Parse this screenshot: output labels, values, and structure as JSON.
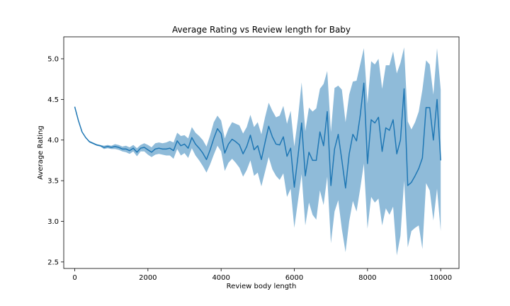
{
  "chart_data": {
    "type": "line",
    "title": "Average Rating vs Review length for Baby",
    "xlabel": "Review body length",
    "ylabel": "Average Rating",
    "xlim": [
      -300,
      10500
    ],
    "ylim": [
      2.42,
      5.27
    ],
    "xticks": [
      0,
      2000,
      4000,
      6000,
      8000,
      10000
    ],
    "xtick_labels": [
      "0",
      "2000",
      "4000",
      "6000",
      "8000",
      "10000"
    ],
    "yticks": [
      2.5,
      3.0,
      3.5,
      4.0,
      4.5,
      5.0
    ],
    "ytick_labels": [
      "2.5",
      "3.0",
      "3.5",
      "4.0",
      "4.5",
      "5.0"
    ],
    "grid": false,
    "line_color": "#1f77b4",
    "band_color": "#1f77b4",
    "series": [
      {
        "x": [
          0,
          100,
          200,
          300,
          400,
          500,
          600,
          700,
          800,
          900,
          1000,
          1100,
          1200,
          1300,
          1400,
          1500,
          1600,
          1700,
          1800,
          1900,
          2000,
          2100,
          2200,
          2300,
          2400,
          2500,
          2600,
          2700,
          2800,
          2900,
          3000,
          3100,
          3200,
          3300,
          3400,
          3500,
          3600,
          3700,
          3800,
          3900,
          4000,
          4100,
          4200,
          4300,
          4400,
          4500,
          4600,
          4700,
          4800,
          4900,
          5000,
          5100,
          5200,
          5300,
          5400,
          5500,
          5600,
          5700,
          5800,
          5900,
          6000,
          6100,
          6200,
          6300,
          6400,
          6500,
          6600,
          6700,
          6800,
          6900,
          7000,
          7100,
          7200,
          7300,
          7400,
          7500,
          7600,
          7700,
          7800,
          7900,
          8000,
          8100,
          8200,
          8300,
          8400,
          8500,
          8600,
          8700,
          8800,
          8900,
          9000,
          9100,
          9200,
          9300,
          9400,
          9500,
          9600,
          9700,
          9800,
          9900,
          10000
        ],
        "y": [
          4.41,
          4.24,
          4.1,
          4.03,
          3.98,
          3.96,
          3.94,
          3.93,
          3.91,
          3.92,
          3.91,
          3.92,
          3.91,
          3.89,
          3.89,
          3.87,
          3.9,
          3.85,
          3.9,
          3.91,
          3.88,
          3.85,
          3.89,
          3.9,
          3.89,
          3.89,
          3.9,
          3.87,
          3.99,
          3.93,
          3.95,
          3.9,
          4.03,
          3.95,
          3.9,
          3.84,
          3.76,
          3.88,
          4.02,
          4.14,
          4.08,
          3.84,
          3.95,
          4.01,
          3.98,
          3.94,
          3.83,
          3.92,
          4.06,
          3.88,
          3.93,
          3.76,
          3.97,
          4.17,
          4.04,
          3.95,
          3.94,
          4.04,
          3.8,
          3.9,
          3.42,
          3.8,
          4.21,
          3.56,
          3.85,
          3.75,
          3.75,
          4.1,
          3.93,
          4.35,
          3.44,
          3.89,
          4.07,
          3.75,
          3.41,
          3.83,
          4.07,
          3.99,
          4.3,
          4.7,
          3.71,
          4.25,
          4.21,
          4.28,
          3.86,
          4.15,
          4.12,
          4.25,
          3.83,
          4.0,
          4.63,
          3.44,
          3.48,
          3.56,
          3.65,
          3.78,
          4.4,
          4.4,
          4.0,
          4.5,
          3.75
        ],
        "lower": [
          4.41,
          4.24,
          4.1,
          4.03,
          3.97,
          3.95,
          3.93,
          3.92,
          3.89,
          3.9,
          3.89,
          3.89,
          3.88,
          3.86,
          3.85,
          3.83,
          3.86,
          3.8,
          3.86,
          3.86,
          3.82,
          3.79,
          3.82,
          3.83,
          3.82,
          3.81,
          3.81,
          3.77,
          3.89,
          3.81,
          3.84,
          3.78,
          3.9,
          3.81,
          3.75,
          3.68,
          3.6,
          3.7,
          3.82,
          3.93,
          3.86,
          3.62,
          3.72,
          3.77,
          3.72,
          3.66,
          3.55,
          3.63,
          3.75,
          3.56,
          3.6,
          3.43,
          3.61,
          3.79,
          3.64,
          3.56,
          3.51,
          3.59,
          3.3,
          3.4,
          2.92,
          3.25,
          3.58,
          2.95,
          3.23,
          3.08,
          3.02,
          3.38,
          3.2,
          3.55,
          2.73,
          3.12,
          3.26,
          2.9,
          2.62,
          3.0,
          3.25,
          3.12,
          3.4,
          3.71,
          2.91,
          3.3,
          3.23,
          3.28,
          2.95,
          3.16,
          3.08,
          3.18,
          2.58,
          2.82,
          3.5,
          2.68,
          2.88,
          2.92,
          2.95,
          2.66,
          3.47,
          3.38,
          3.01,
          3.4,
          2.88
        ],
        "upper": [
          4.41,
          4.24,
          4.1,
          4.03,
          3.99,
          3.97,
          3.95,
          3.94,
          3.93,
          3.94,
          3.93,
          3.95,
          3.94,
          3.92,
          3.93,
          3.91,
          3.94,
          3.9,
          3.94,
          3.96,
          3.94,
          3.91,
          3.96,
          3.97,
          3.96,
          3.97,
          3.99,
          3.97,
          4.09,
          4.05,
          4.06,
          4.02,
          4.16,
          4.09,
          4.05,
          4.0,
          3.92,
          4.06,
          4.22,
          4.3,
          4.24,
          4.02,
          4.14,
          4.22,
          4.2,
          4.18,
          4.08,
          4.16,
          4.31,
          4.16,
          4.22,
          4.07,
          4.28,
          4.46,
          4.36,
          4.28,
          4.3,
          4.42,
          4.2,
          4.36,
          3.92,
          4.27,
          4.71,
          4.11,
          4.4,
          4.35,
          4.39,
          4.63,
          4.69,
          4.85,
          4.1,
          4.64,
          4.67,
          4.62,
          4.22,
          4.56,
          4.72,
          4.73,
          4.93,
          5.13,
          4.45,
          4.97,
          4.93,
          5.0,
          4.63,
          4.92,
          4.92,
          5.09,
          4.82,
          4.95,
          5.14,
          4.23,
          4.13,
          4.22,
          4.35,
          4.62,
          4.98,
          4.93,
          4.56,
          5.13,
          4.62
        ]
      }
    ]
  }
}
